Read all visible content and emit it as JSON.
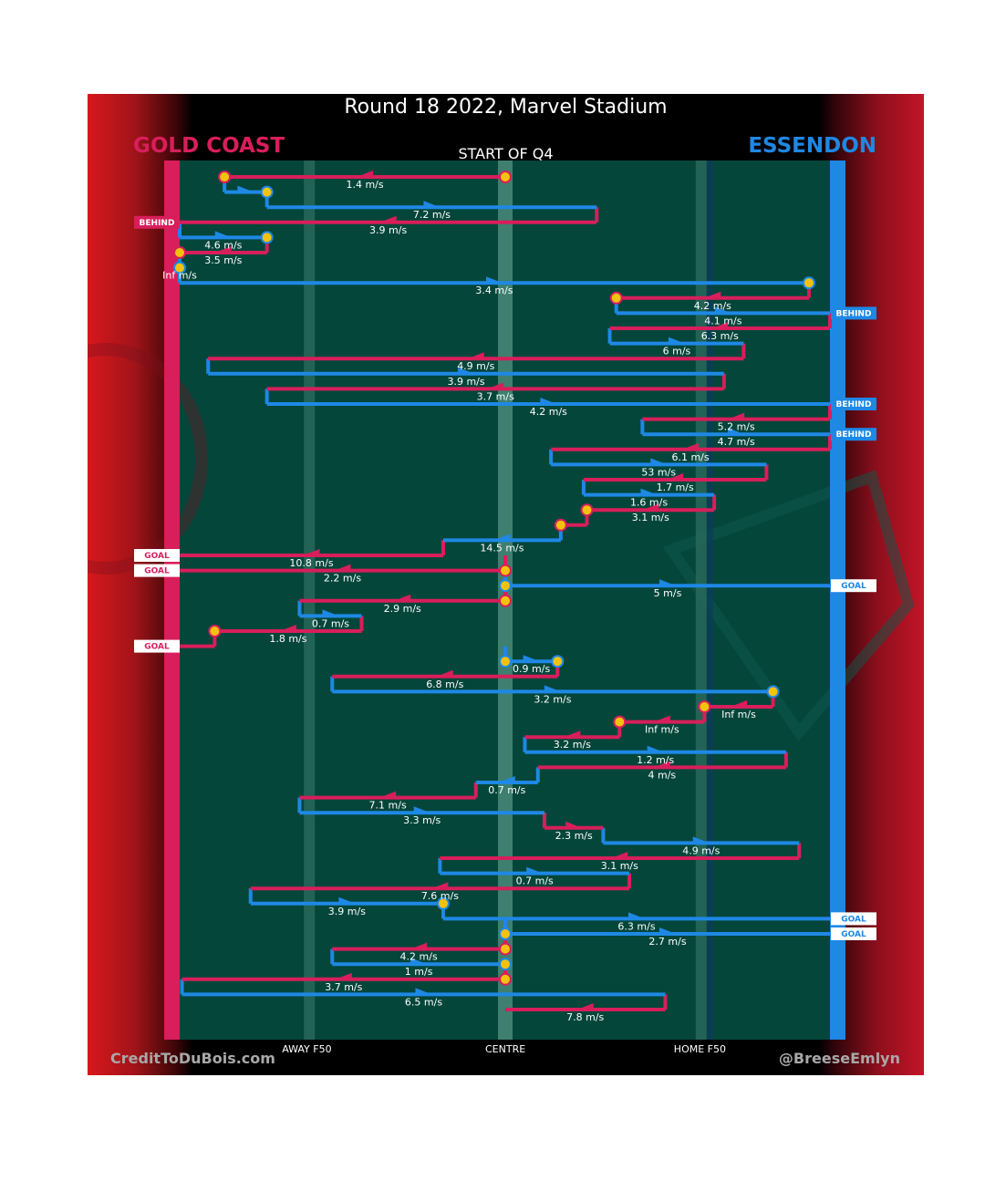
{
  "title": "Round 18 2022, Marvel Stadium",
  "quarter_label": "START OF Q4",
  "teams": {
    "left": {
      "name": "GOLD COAST",
      "color": "#d81e5b"
    },
    "right": {
      "name": "ESSENDON",
      "color": "#1e88e5"
    }
  },
  "zone_labels": {
    "away": "AWAY F50",
    "centre": "CENTRE",
    "home": "HOME F50"
  },
  "footer": {
    "left": "CreditToDuBois.com",
    "right": "@BreeseEmlyn"
  },
  "chart_data": {
    "type": "chain",
    "x_axis": {
      "left_goal": -1,
      "away_f50": -0.6,
      "centre": 0,
      "home_f50": 0.6,
      "right_goal": 1
    },
    "events": [
      {
        "team": "GC",
        "x0": 0,
        "x1": -0.86,
        "speed": "1.4 m/s",
        "start_marker": true,
        "end_marker": true
      },
      {
        "team": "ESS",
        "x0": -0.86,
        "x1": -0.73,
        "speed": "",
        "end_marker": true
      },
      {
        "team": "ESS",
        "x0": -0.73,
        "x1": 0.28,
        "speed": "7.2 m/s"
      },
      {
        "team": "GC",
        "x0": 0.28,
        "x1": -1,
        "speed": "3.9 m/s",
        "result": "BEHIND"
      },
      {
        "team": "ESS",
        "x0": -1,
        "x1": -0.73,
        "speed": "4.6 m/s",
        "end_marker": true
      },
      {
        "team": "GC",
        "x0": -0.73,
        "x1": -1.77,
        "speed": "3.5 m/s",
        "end_marker": true
      },
      {
        "team": "ESS",
        "x0": -1.77,
        "x1": -1.57,
        "speed": "Inf m/s",
        "end_marker": true
      },
      {
        "team": "ESS",
        "x0": -1.57,
        "x1": 0.93,
        "speed": "3.4 m/s",
        "end_marker": true
      },
      {
        "team": "GC",
        "x0": 0.93,
        "x1": 0.34,
        "speed": "4.2 m/s",
        "end_marker": true
      },
      {
        "team": "ESS",
        "x0": 0.34,
        "x1": 1,
        "speed": "4.1 m/s",
        "result": "BEHIND"
      },
      {
        "team": "GC",
        "x0": 1,
        "x1": 0.32,
        "speed": "6.3 m/s"
      },
      {
        "team": "ESS",
        "x0": 0.32,
        "x1": 0.73,
        "speed": "6 m/s"
      },
      {
        "team": "GC",
        "x0": 0.73,
        "x1": -0.91,
        "speed": "4.9 m/s"
      },
      {
        "team": "ESS",
        "x0": -0.91,
        "x1": 0.67,
        "speed": "3.9 m/s"
      },
      {
        "team": "GC",
        "x0": 0.67,
        "x1": -0.73,
        "speed": "3.7 m/s"
      },
      {
        "team": "ESS",
        "x0": -0.73,
        "x1": 1,
        "speed": "4.2 m/s",
        "result": "BEHIND"
      },
      {
        "team": "GC",
        "x0": 1,
        "x1": 0.42,
        "speed": "5.2 m/s"
      },
      {
        "team": "ESS",
        "x0": 0.42,
        "x1": 1,
        "speed": "4.7 m/s",
        "result": "BEHIND"
      },
      {
        "team": "GC",
        "x0": 1,
        "x1": 0.14,
        "speed": "6.1 m/s"
      },
      {
        "team": "ESS",
        "x0": 0.14,
        "x1": 0.8,
        "speed": "53 m/s"
      },
      {
        "team": "GC",
        "x0": 0.8,
        "x1": 0.24,
        "speed": "1.7 m/s"
      },
      {
        "team": "ESS",
        "x0": 0.24,
        "x1": 0.64,
        "speed": "1.6 m/s"
      },
      {
        "team": "GC",
        "x0": 0.64,
        "x1": 0.25,
        "speed": "3.1 m/s",
        "end_marker": true
      },
      {
        "team": "GC",
        "x0": 0.25,
        "x1": 0.17,
        "speed": "",
        "end_marker": true
      },
      {
        "team": "ESS",
        "x0": 0.17,
        "x1": -0.19,
        "speed": "14.5 m/s"
      },
      {
        "team": "GC",
        "x0": -0.19,
        "x1": -1,
        "speed": "10.8 m/s",
        "result": "GOAL"
      },
      {
        "team": "GC",
        "x0": 0,
        "x1": -1,
        "speed": "2.2 m/s",
        "result": "GOAL",
        "start_marker": true
      },
      {
        "team": "ESS",
        "x0": 0,
        "x1": 1,
        "speed": "5 m/s",
        "result": "GOAL",
        "start_marker": true
      },
      {
        "team": "GC",
        "x0": 0,
        "x1": -0.63,
        "speed": "2.9 m/s",
        "start_marker": true
      },
      {
        "team": "ESS",
        "x0": -0.63,
        "x1": -0.44,
        "speed": "0.7 m/s"
      },
      {
        "team": "GC",
        "x0": -0.44,
        "x1": -0.89,
        "speed": "1.8 m/s",
        "end_marker": true
      },
      {
        "team": "GC",
        "x0": -0.89,
        "x1": -1,
        "speed": "",
        "result": "GOAL"
      },
      {
        "team": "ESS",
        "x0": 0,
        "x1": 0.16,
        "speed": "0.9 m/s",
        "start_marker": true,
        "end_marker": true
      },
      {
        "team": "GC",
        "x0": 0.16,
        "x1": -0.53,
        "speed": "6.8 m/s"
      },
      {
        "team": "ESS",
        "x0": -0.53,
        "x1": 0.82,
        "speed": "3.2 m/s",
        "end_marker": true
      },
      {
        "team": "GC",
        "x0": 0.82,
        "x1": 0.61,
        "speed": "Inf m/s",
        "end_marker": true
      },
      {
        "team": "GC",
        "x0": 0.61,
        "x1": 0.35,
        "speed": "Inf m/s",
        "end_marker": true
      },
      {
        "team": "GC",
        "x0": 0.35,
        "x1": 0.06,
        "speed": "3.2 m/s"
      },
      {
        "team": "ESS",
        "x0": 0.06,
        "x1": 0.86,
        "speed": "1.2 m/s"
      },
      {
        "team": "GC",
        "x0": 0.86,
        "x1": 0.1,
        "speed": "4 m/s"
      },
      {
        "team": "ESS",
        "x0": 0.1,
        "x1": -0.09,
        "speed": "0.7 m/s"
      },
      {
        "team": "GC",
        "x0": -0.09,
        "x1": -0.63,
        "speed": "7.1 m/s"
      },
      {
        "team": "ESS",
        "x0": -0.63,
        "x1": 0.12,
        "speed": "3.3 m/s"
      },
      {
        "team": "GC",
        "x0": 0.12,
        "x1": 0.3,
        "speed": "2.3 m/s"
      },
      {
        "team": "ESS",
        "x0": 0.3,
        "x1": 0.9,
        "speed": "4.9 m/s"
      },
      {
        "team": "GC",
        "x0": 0.9,
        "x1": -0.2,
        "speed": "3.1 m/s"
      },
      {
        "team": "ESS",
        "x0": -0.2,
        "x1": 0.38,
        "speed": "0.7 m/s"
      },
      {
        "team": "GC",
        "x0": 0.38,
        "x1": -0.78,
        "speed": "7.6 m/s"
      },
      {
        "team": "ESS",
        "x0": -0.78,
        "x1": -0.19,
        "speed": "3.9 m/s",
        "end_marker": true
      },
      {
        "team": "ESS",
        "x0": -0.19,
        "x1": 1,
        "speed": "6.3 m/s",
        "result": "GOAL"
      },
      {
        "team": "ESS",
        "x0": 0,
        "x1": 1,
        "speed": "2.7 m/s",
        "result": "GOAL",
        "start_marker": true
      },
      {
        "team": "GC",
        "x0": 0,
        "x1": -0.53,
        "speed": "4.2 m/s",
        "start_marker": true
      },
      {
        "team": "ESS",
        "x0": -0.53,
        "x1": 0,
        "speed": "1 m/s",
        "end_marker": true
      },
      {
        "team": "GC",
        "x0": 0,
        "x1": -0.99,
        "speed": "3.7 m/s",
        "start_marker": true
      },
      {
        "team": "ESS",
        "x0": -0.99,
        "x1": 0.49,
        "speed": "6.5 m/s"
      },
      {
        "team": "GC",
        "x0": 0.49,
        "x1": 0,
        "speed": "7.8 m/s"
      }
    ]
  }
}
